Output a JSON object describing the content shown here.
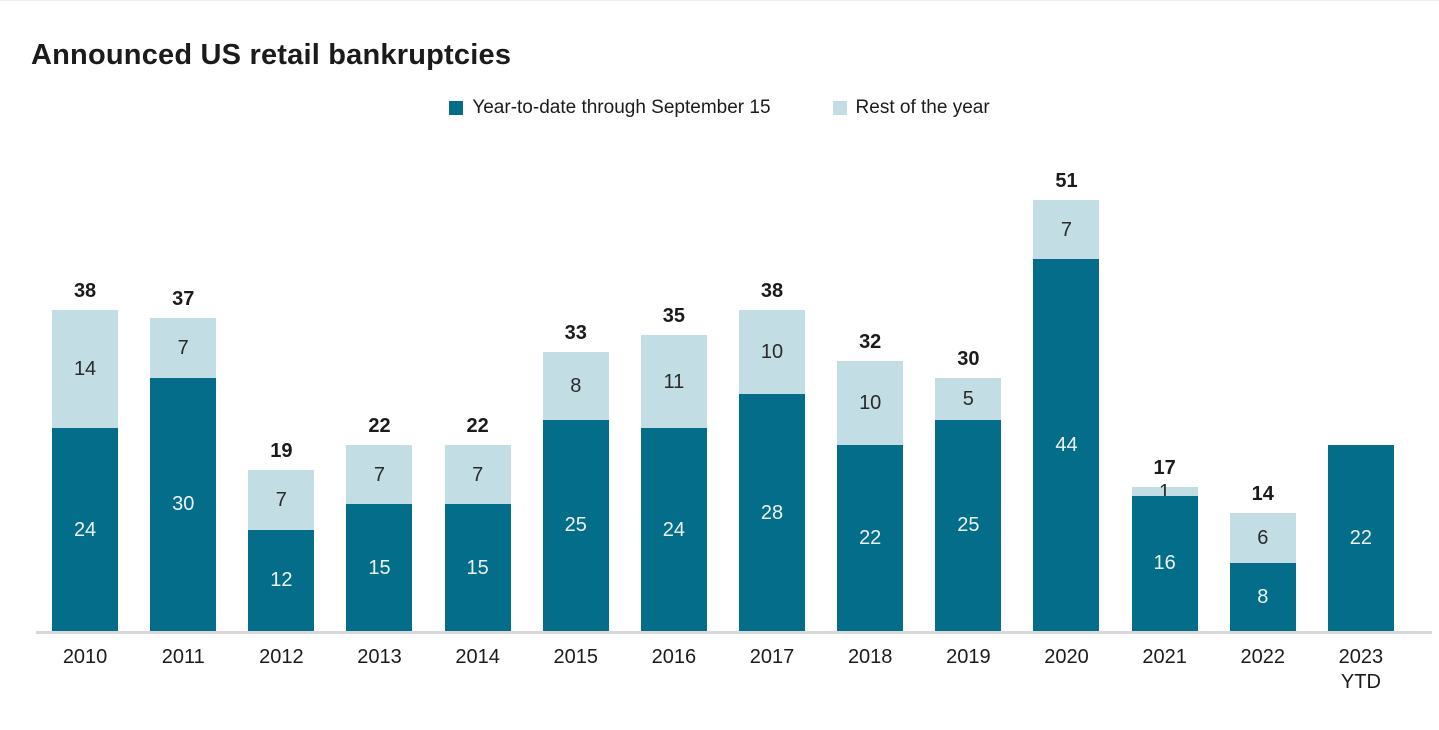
{
  "title": "Announced US retail bankruptcies",
  "colors": {
    "ytd_segment": "#046e8a",
    "rest_segment": "#c3dde5",
    "total_label": "#1b1b1b",
    "label_on_dark": "#edf3f5",
    "label_on_light": "#2a2a2a",
    "axis_line": "#d8d8d8",
    "background": "#ffffff"
  },
  "legend": {
    "items": [
      {
        "label": "Year-to-date through September 15",
        "color": "#046e8a"
      },
      {
        "label": "Rest of the year",
        "color": "#c3dde5"
      }
    ],
    "position": "top-center"
  },
  "chart_data": {
    "type": "bar",
    "stacked": true,
    "title": "Announced US retail bankruptcies",
    "xlabel": "",
    "ylabel": "",
    "grid": false,
    "y_axis_shown": false,
    "ylim": [
      0,
      51
    ],
    "categories": [
      "2010",
      "2011",
      "2012",
      "2013",
      "2014",
      "2015",
      "2016",
      "2017",
      "2018",
      "2019",
      "2020",
      "2021",
      "2022",
      "2023"
    ],
    "category_sublabels": [
      null,
      null,
      null,
      null,
      null,
      null,
      null,
      null,
      null,
      null,
      null,
      null,
      null,
      "YTD"
    ],
    "series": [
      {
        "name": "Year-to-date through September 15",
        "color": "#046e8a",
        "values": [
          24,
          30,
          12,
          15,
          15,
          25,
          24,
          28,
          22,
          25,
          44,
          16,
          8,
          22
        ]
      },
      {
        "name": "Rest of the year",
        "color": "#c3dde5",
        "values": [
          14,
          7,
          7,
          7,
          7,
          8,
          11,
          10,
          10,
          5,
          7,
          1,
          6,
          null
        ]
      }
    ],
    "totals": [
      38,
      37,
      19,
      22,
      22,
      33,
      35,
      38,
      32,
      30,
      51,
      17,
      14,
      null
    ],
    "legend_position": "top"
  }
}
